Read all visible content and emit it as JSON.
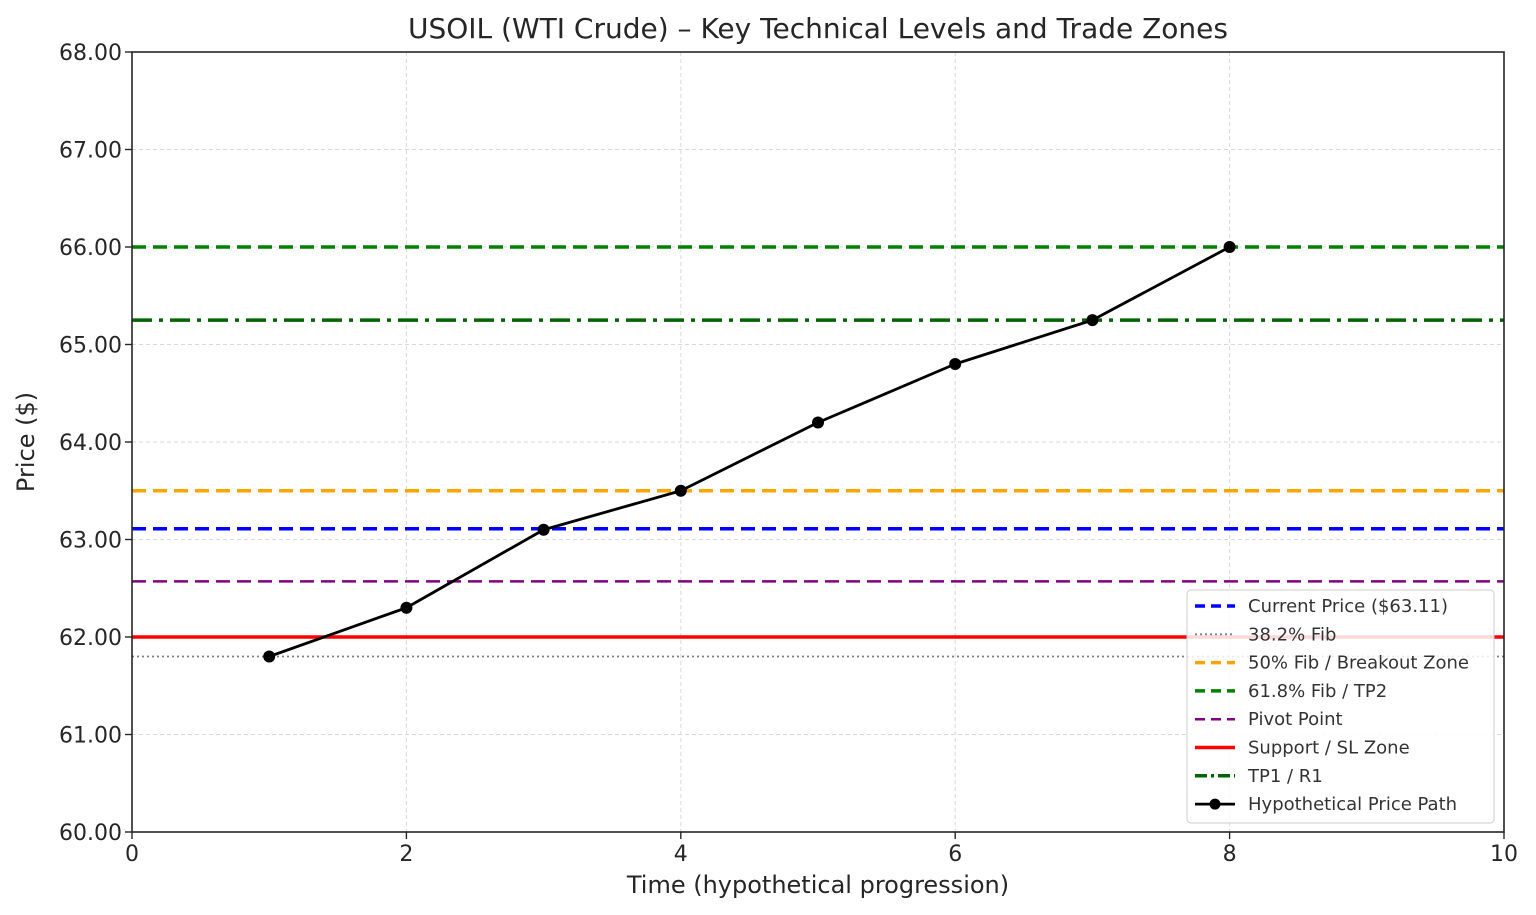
{
  "chart_data": {
    "type": "line",
    "title": "USOIL (WTI Crude) – Key Technical Levels and Trade Zones",
    "xlabel": "Time (hypothetical progression)",
    "ylabel": "Price ($)",
    "xlim": [
      0,
      10
    ],
    "ylim": [
      60,
      68
    ],
    "x_ticks": [
      0,
      2,
      4,
      6,
      8,
      10
    ],
    "x_tick_labels": [
      "0",
      "2",
      "4",
      "6",
      "8",
      "10"
    ],
    "y_ticks": [
      60,
      61,
      62,
      63,
      64,
      65,
      66,
      67,
      68
    ],
    "y_tick_labels": [
      "60.00",
      "61.00",
      "62.00",
      "63.00",
      "64.00",
      "65.00",
      "66.00",
      "67.00",
      "68.00"
    ],
    "grid": true,
    "legend_position": "bottom-right",
    "levels": [
      {
        "name": "Current Price ($63.11)",
        "value": 63.11,
        "color": "#0000ff",
        "style": "dashed",
        "width": 3.5
      },
      {
        "name": "38.2% Fib",
        "value": 61.8,
        "color": "#808080",
        "style": "dotted",
        "width": 1.8
      },
      {
        "name": "50% Fib / Breakout Zone",
        "value": 63.5,
        "color": "#ffa500",
        "style": "dashed",
        "width": 3.5
      },
      {
        "name": "61.8% Fib / TP2",
        "value": 66.0,
        "color": "#008000",
        "style": "dashed",
        "width": 3.5
      },
      {
        "name": "Pivot Point",
        "value": 62.57,
        "color": "#800080",
        "style": "dashed",
        "width": 2.5
      },
      {
        "name": "Support / SL Zone",
        "value": 62.0,
        "color": "#ff0000",
        "style": "solid",
        "width": 3.5
      },
      {
        "name": "TP1 / R1",
        "value": 65.25,
        "color": "#006400",
        "style": "dashdot",
        "width": 3.5
      }
    ],
    "series": [
      {
        "name": "Hypothetical Price Path",
        "color": "#000000",
        "x": [
          1,
          2,
          3,
          4,
          5,
          6,
          7,
          8
        ],
        "y": [
          61.8,
          62.3,
          63.1,
          63.5,
          64.2,
          64.8,
          65.25,
          66.0
        ]
      }
    ]
  }
}
